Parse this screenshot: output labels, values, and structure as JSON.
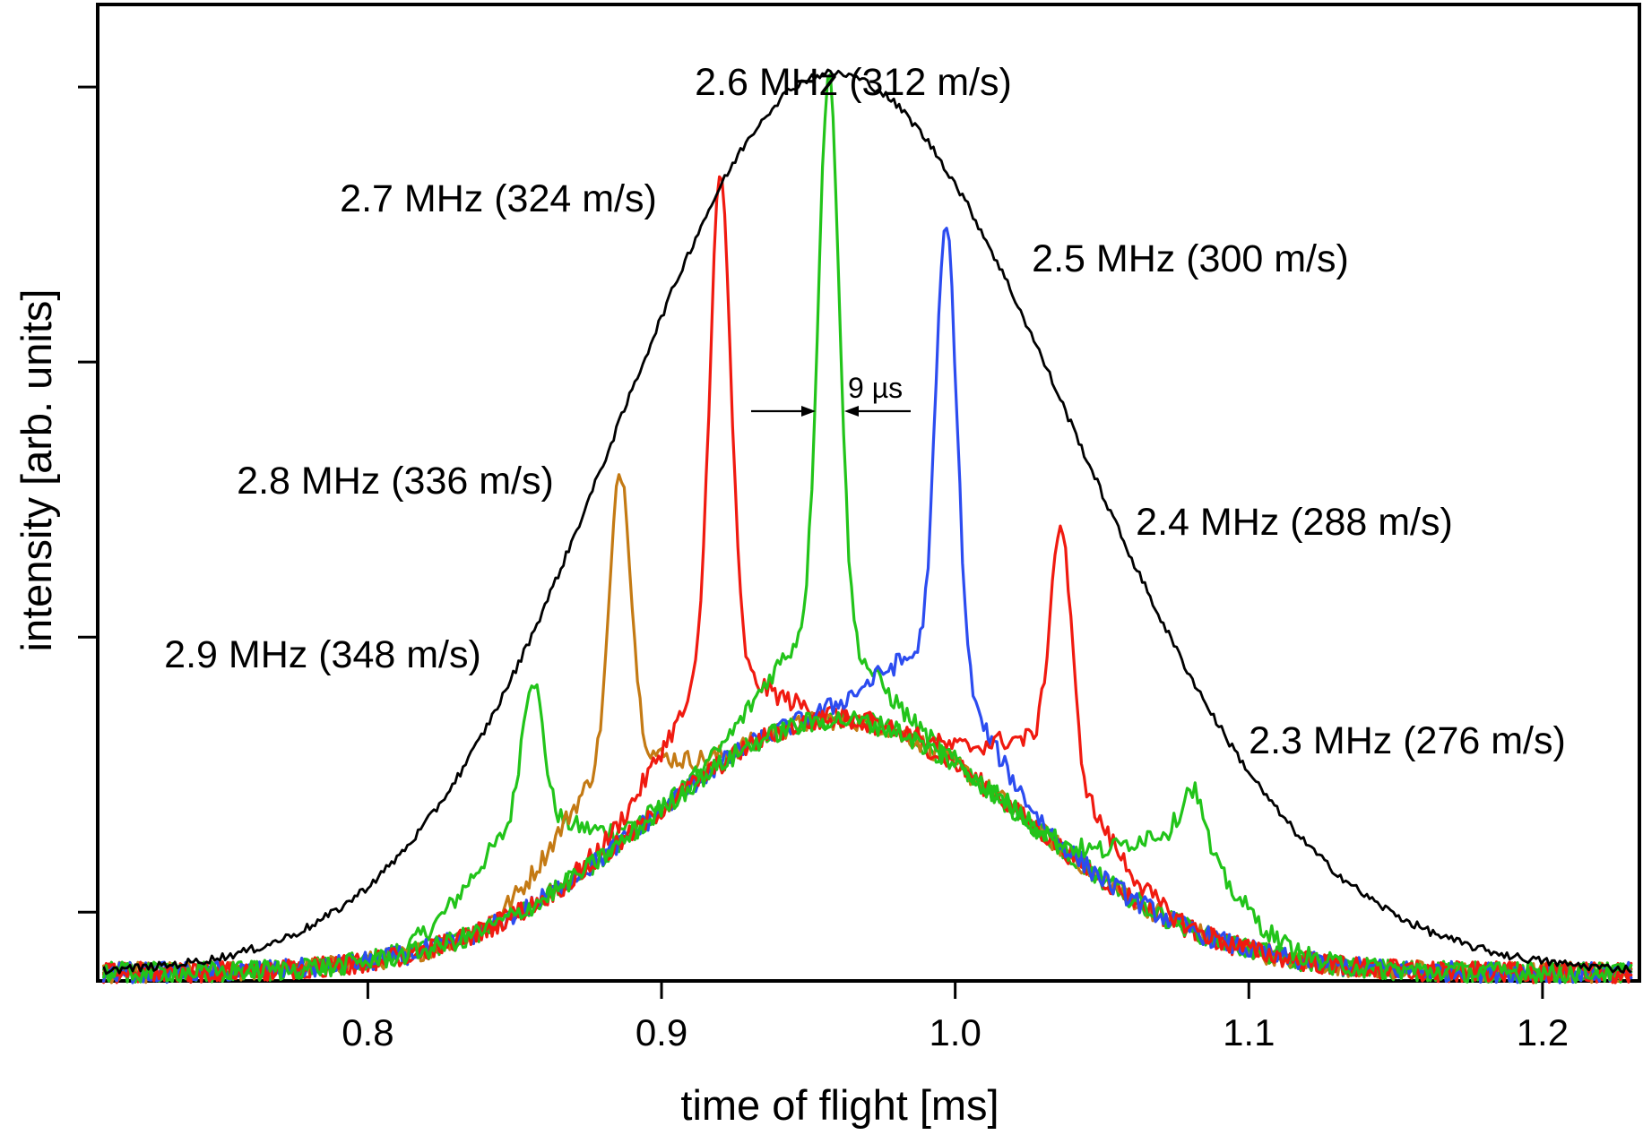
{
  "chart_data": {
    "type": "line",
    "xlabel": "time of flight [ms]",
    "ylabel": "intensity [arb. units]",
    "xlim": [
      0.708,
      1.233
    ],
    "ylim": [
      -0.25,
      3.3
    ],
    "x_ticks": [
      0.8,
      0.9,
      1.0,
      1.1,
      1.2
    ],
    "x_tick_labels": [
      "0.8",
      "0.9",
      "1.0",
      "1.1",
      "1.2"
    ],
    "y_ticks": [
      0,
      1,
      2,
      3
    ],
    "y_tick_labels_visible": false,
    "grid": false,
    "envelope": {
      "color": "#000000",
      "center": 0.958,
      "peak": 3.05,
      "baseline": -0.22,
      "left_width": 0.073,
      "right_width": 0.082
    },
    "series": [
      {
        "color": "#22c41a",
        "peak_x": 0.856,
        "peak_y": 0.86
      },
      {
        "color": "#c47a14",
        "peak_x": 0.886,
        "peak_y": 1.61
      },
      {
        "color": "#f01a10",
        "peak_x": 0.92,
        "peak_y": 2.68
      },
      {
        "color": "#22c41a",
        "peak_x": 0.957,
        "peak_y": 3.05
      },
      {
        "color": "#2c4cf0",
        "peak_x": 0.997,
        "peak_y": 2.5
      },
      {
        "color": "#f01a10",
        "peak_x": 1.036,
        "peak_y": 1.41
      },
      {
        "color": "#22c41a",
        "peak_x": 1.081,
        "peak_y": 0.46
      }
    ],
    "annotations": [
      "2.6 MHz (312 m/s)",
      "2.7 MHz (324 m/s)",
      "2.5 MHz (300 m/s)",
      "2.8 MHz (336 m/s)",
      "2.4 MHz (288 m/s)",
      "2.9 MHz (348 m/s)",
      "2.3 MHz (276 m/s)"
    ],
    "peak_width_label": "9 µs",
    "peak_width": 0.009
  }
}
